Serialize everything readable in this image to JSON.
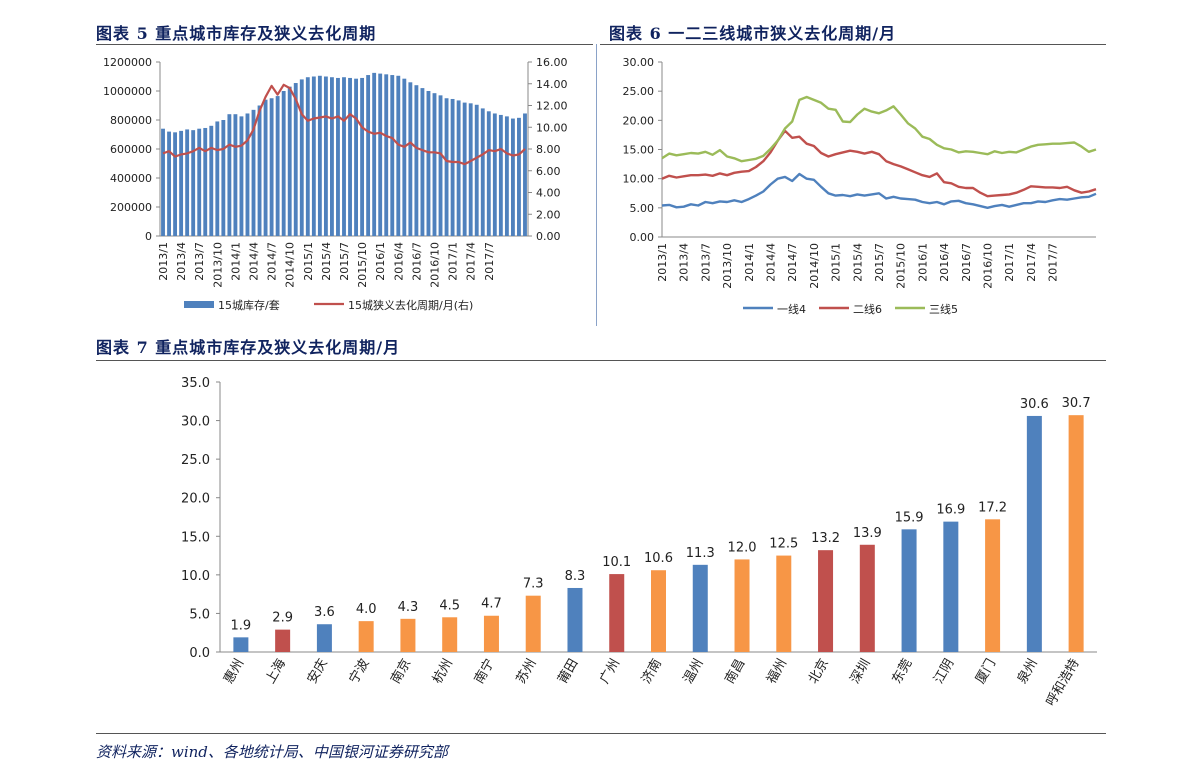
{
  "titles": {
    "fig5": "图表 5  重点城市库存及狭义去化周期",
    "fig6": "图表 6  一二三线城市狭义去化周期/月",
    "fig7": "图表 7  重点城市库存及狭义去化周期/月"
  },
  "source": "资料来源：wind、各地统计局、中国银河证券研究部",
  "colors": {
    "blue": "#4f81bd",
    "red": "#c0504d",
    "orange": "#f79646",
    "green": "#9bbb59",
    "title": "#10235f"
  },
  "chart_data": [
    {
      "type": "bar+line",
      "x_tick_labels": [
        "2013/1",
        "2013/4",
        "2013/7",
        "2013/10",
        "2014/1",
        "2014/4",
        "2014/7",
        "2014/10",
        "2015/1",
        "2015/4",
        "2015/7",
        "2015/10",
        "2016/1",
        "2016/4",
        "2016/7",
        "2016/10",
        "2017/1",
        "2017/4",
        "2017/7"
      ],
      "y_left": {
        "ticks": [
          "0",
          "200000",
          "400000",
          "600000",
          "800000",
          "1000000",
          "1200000"
        ],
        "ylim": [
          0,
          1200000
        ]
      },
      "y_right": {
        "ticks": [
          "0.00",
          "2.00",
          "4.00",
          "6.00",
          "8.00",
          "10.00",
          "12.00",
          "14.00",
          "16.00"
        ],
        "ylim": [
          0,
          16
        ]
      },
      "series": [
        {
          "name": "15城库存/套",
          "type": "bar",
          "axis": "left",
          "values": [
            740000,
            720000,
            715000,
            725000,
            735000,
            730000,
            740000,
            745000,
            760000,
            790000,
            800000,
            840000,
            840000,
            825000,
            845000,
            870000,
            900000,
            940000,
            950000,
            965000,
            1000000,
            1030000,
            1055000,
            1080000,
            1095000,
            1100000,
            1105000,
            1100000,
            1095000,
            1090000,
            1095000,
            1090000,
            1085000,
            1090000,
            1110000,
            1125000,
            1120000,
            1115000,
            1110000,
            1105000,
            1085000,
            1060000,
            1040000,
            1020000,
            1000000,
            985000,
            970000,
            950000,
            945000,
            935000,
            920000,
            915000,
            905000,
            880000,
            860000,
            845000,
            835000,
            825000,
            810000,
            815000,
            845000
          ]
        },
        {
          "name": "15城狭义去化周期/月(右)",
          "type": "line",
          "axis": "right",
          "values": [
            7.6,
            7.8,
            7.3,
            7.5,
            7.6,
            7.8,
            8.1,
            7.8,
            8.1,
            7.9,
            8.0,
            8.4,
            8.2,
            8.3,
            8.8,
            9.8,
            11.5,
            12.8,
            13.8,
            13.0,
            13.9,
            13.6,
            12.6,
            11.2,
            10.6,
            10.8,
            10.9,
            11.0,
            10.8,
            11.0,
            10.6,
            11.2,
            10.8,
            10.0,
            9.6,
            9.4,
            9.5,
            9.2,
            9.0,
            8.4,
            8.2,
            8.6,
            8.1,
            7.9,
            7.7,
            7.7,
            7.6,
            6.9,
            6.8,
            6.8,
            6.6,
            6.9,
            7.2,
            7.5,
            7.9,
            7.8,
            8.0,
            7.6,
            7.4,
            7.5,
            8.0
          ]
        }
      ]
    },
    {
      "type": "line",
      "x_tick_labels": [
        "2013/1",
        "2013/4",
        "2013/7",
        "2013/10",
        "2014/1",
        "2014/4",
        "2014/7",
        "2014/10",
        "2015/1",
        "2015/4",
        "2015/7",
        "2015/10",
        "2016/1",
        "2016/4",
        "2016/7",
        "2016/10",
        "2017/1",
        "2017/4",
        "2017/7"
      ],
      "y": {
        "ticks": [
          "0.00",
          "5.00",
          "10.00",
          "15.00",
          "20.00",
          "25.00",
          "30.00"
        ],
        "ylim": [
          0,
          30
        ]
      },
      "series": [
        {
          "name": "一线4",
          "color": "#4f81bd",
          "values": [
            5.4,
            5.5,
            5.1,
            5.2,
            5.6,
            5.4,
            6.0,
            5.8,
            6.1,
            6.0,
            6.3,
            6.0,
            6.5,
            7.1,
            7.8,
            9.0,
            10.0,
            10.3,
            9.6,
            10.8,
            10.0,
            9.8,
            8.6,
            7.5,
            7.1,
            7.2,
            7.0,
            7.3,
            7.1,
            7.3,
            7.5,
            6.6,
            6.9,
            6.6,
            6.5,
            6.4,
            6.0,
            5.8,
            6.0,
            5.6,
            6.1,
            6.2,
            5.8,
            5.6,
            5.3,
            5.0,
            5.3,
            5.5,
            5.2,
            5.5,
            5.8,
            5.8,
            6.1,
            6.0,
            6.3,
            6.5,
            6.4,
            6.6,
            6.8,
            6.9,
            7.4
          ]
        },
        {
          "name": "二线6",
          "color": "#c0504d",
          "values": [
            10.0,
            10.5,
            10.2,
            10.4,
            10.6,
            10.6,
            10.7,
            10.5,
            10.9,
            10.6,
            11.0,
            11.2,
            11.3,
            12.0,
            13.0,
            14.5,
            16.5,
            18.2,
            17.0,
            17.2,
            16.0,
            15.6,
            14.4,
            13.8,
            14.2,
            14.5,
            14.8,
            14.6,
            14.3,
            14.6,
            14.2,
            13.0,
            12.5,
            12.1,
            11.6,
            11.1,
            10.6,
            10.3,
            10.9,
            9.4,
            9.2,
            8.6,
            8.4,
            8.4,
            7.6,
            7.0,
            7.1,
            7.2,
            7.3,
            7.6,
            8.1,
            8.7,
            8.6,
            8.5,
            8.5,
            8.4,
            8.6,
            8.0,
            7.6,
            7.8,
            8.2
          ]
        },
        {
          "name": "三线5",
          "color": "#9bbb59",
          "values": [
            13.5,
            14.3,
            14.0,
            14.2,
            14.4,
            14.3,
            14.6,
            14.1,
            14.9,
            13.8,
            13.5,
            13.0,
            13.2,
            13.4,
            13.9,
            15.1,
            16.5,
            18.6,
            19.8,
            23.5,
            24.0,
            23.5,
            23.0,
            22.0,
            21.8,
            19.8,
            19.7,
            21.0,
            22.0,
            21.5,
            21.2,
            21.7,
            22.4,
            21.0,
            19.5,
            18.6,
            17.2,
            16.8,
            15.8,
            15.2,
            15.0,
            14.5,
            14.7,
            14.6,
            14.4,
            14.2,
            14.7,
            14.4,
            14.6,
            14.5,
            15.0,
            15.5,
            15.8,
            15.9,
            16.0,
            16.0,
            16.1,
            16.2,
            15.5,
            14.6,
            15.0
          ]
        }
      ]
    },
    {
      "type": "bar",
      "categories": [
        "惠州",
        "上海",
        "安庆",
        "宁波",
        "南京",
        "杭州",
        "南宁",
        "苏州",
        "莆田",
        "广州",
        "济南",
        "温州",
        "南昌",
        "福州",
        "北京",
        "深圳",
        "东莞",
        "江阴",
        "厦门",
        "泉州",
        "呼和浩特"
      ],
      "values": [
        1.9,
        2.9,
        3.6,
        4.0,
        4.3,
        4.5,
        4.7,
        7.3,
        8.3,
        10.1,
        10.6,
        11.3,
        12.0,
        12.5,
        13.2,
        13.9,
        15.9,
        16.9,
        17.2,
        30.6,
        30.7
      ],
      "value_labels": [
        "1.9",
        "2.9",
        "3.6",
        "4.0",
        "4.3",
        "4.5",
        "4.7",
        "7.3",
        "8.3",
        "10.1",
        "10.6",
        "11.3",
        "12.0",
        "12.5",
        "13.2",
        "13.9",
        "15.9",
        "16.9",
        "17.2",
        "30.6",
        "30.7"
      ],
      "bar_colors": [
        "#4f81bd",
        "#c0504d",
        "#4f81bd",
        "#f79646",
        "#f79646",
        "#f79646",
        "#f79646",
        "#f79646",
        "#4f81bd",
        "#c0504d",
        "#f79646",
        "#4f81bd",
        "#f79646",
        "#f79646",
        "#c0504d",
        "#c0504d",
        "#4f81bd",
        "#4f81bd",
        "#f79646",
        "#4f81bd",
        "#f79646"
      ],
      "y": {
        "ticks": [
          "0.0",
          "5.0",
          "10.0",
          "15.0",
          "20.0",
          "25.0",
          "30.0",
          "35.0"
        ],
        "ylim": [
          0,
          35
        ]
      }
    }
  ]
}
